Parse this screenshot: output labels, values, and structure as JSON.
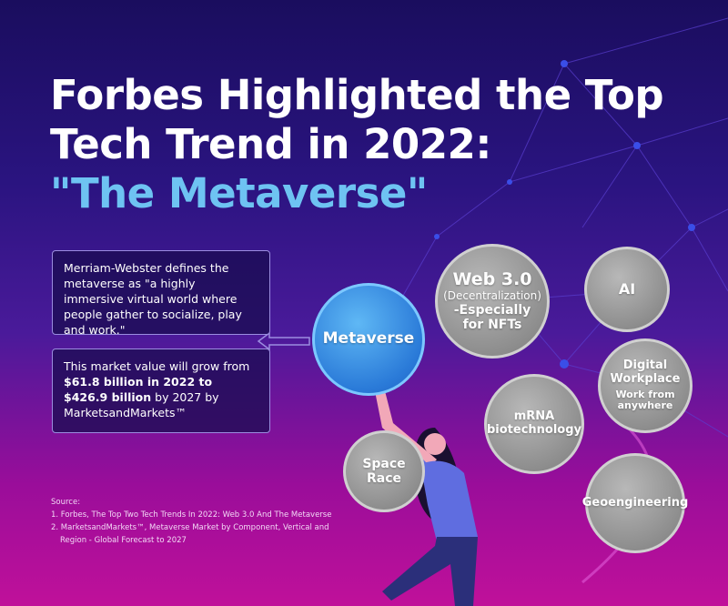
{
  "title": {
    "line1": "Forbes Highlighted the Top",
    "line2": "Tech Trend in 2022:",
    "line3": "\"The Metaverse\""
  },
  "definition_box": {
    "text": "Merriam-Webster defines the metaverse as \"a highly immersive virtual world where people gather to socialize, play and work.\""
  },
  "market_box": {
    "intro": "This market value will grow from ",
    "bold": "$61.8 billion in 2022 to $426.9 billion",
    "outro": " by 2027 by MarketsandMarkets™"
  },
  "bubbles": {
    "metaverse": "Metaverse",
    "web3_title": "Web 3.0",
    "web3_sub": "(Decentralization)",
    "web3_line3": "-Especially",
    "web3_line4": "for NFTs",
    "ai": "AI",
    "digital_line1": "Digital",
    "digital_line2": "Workplace",
    "digital_sub1": "Work from",
    "digital_sub2": "anywhere",
    "mrna_line1": "mRNA",
    "mrna_line2": "biotechnology",
    "space_line1": "Space",
    "space_line2": "Race",
    "geo": "Geoengineering"
  },
  "sources": {
    "heading": "Source:",
    "s1": "1. Forbes, The Top Two Tech Trends In 2022: Web 3.0 And The Metaverse",
    "s2a": "2. MarketsandMarkets™, Metaverse Market by Component, Vertical and",
    "s2b": "Region - Global Forecast to 2027"
  },
  "colors": {
    "accent": "#6ec3f2",
    "metaverse_bubble": "#2a7ad8",
    "bubble_gray": "#9a9a9a"
  }
}
